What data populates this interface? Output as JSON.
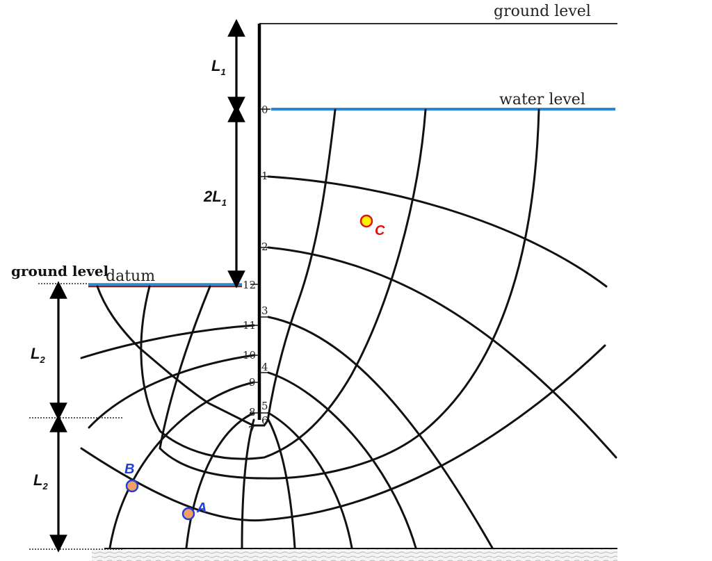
{
  "labels": {
    "ground_level_top": "ground level",
    "water_level": "water level",
    "ground_level_left": "ground level",
    "datum": "datum"
  },
  "dimensions": {
    "d1": {
      "main": "L",
      "sub": "1"
    },
    "d2": {
      "prefix": "2L",
      "sub": "1"
    },
    "d3": {
      "main": "L",
      "sub": "2"
    },
    "d4": {
      "main": "L",
      "sub": "2"
    }
  },
  "head_drop_numbers": [
    "0",
    "1",
    "2",
    "3",
    "4",
    "5",
    "6",
    "7",
    "8",
    "9",
    "10",
    "11",
    "12"
  ],
  "points": {
    "A": {
      "label": "A",
      "fill": "#f4a064",
      "stroke": "#1f3fd6",
      "label_color": "#1f3fd6"
    },
    "B": {
      "label": "B",
      "fill": "#f4a064",
      "stroke": "#1f3fd6",
      "label_color": "#1f3fd6"
    },
    "C": {
      "label": "C",
      "fill": "#fff200",
      "stroke": "#e01010",
      "label_color": "#e01010"
    }
  },
  "colors": {
    "water": "#2a86d8",
    "datum_line": "#7a2a1a",
    "lines": "#111111"
  }
}
